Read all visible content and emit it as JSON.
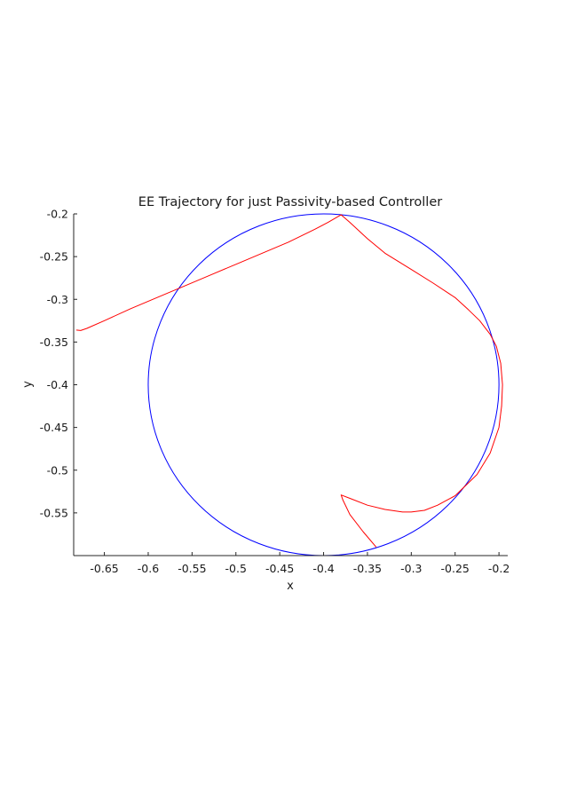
{
  "chart_data": {
    "type": "line",
    "title": "EE Trajectory for just Passivity-based Controller",
    "xlabel": "x",
    "ylabel": "y",
    "xlim": [
      -0.685,
      -0.19
    ],
    "ylim": [
      -0.6,
      -0.2
    ],
    "xticks": [
      -0.65,
      -0.6,
      -0.55,
      -0.5,
      -0.45,
      -0.4,
      -0.35,
      -0.3,
      -0.25,
      -0.2
    ],
    "xtick_labels": [
      "-0.65",
      "-0.6",
      "-0.55",
      "-0.5",
      "-0.45",
      "-0.4",
      "-0.35",
      "-0.3",
      "-0.25",
      "-0.2"
    ],
    "yticks": [
      -0.2,
      -0.25,
      -0.3,
      -0.35,
      -0.4,
      -0.45,
      -0.5,
      -0.55
    ],
    "ytick_labels": [
      "-0.2",
      "-0.25",
      "-0.3",
      "-0.35",
      "-0.4",
      "-0.45",
      "-0.5",
      "-0.55"
    ],
    "grid": false,
    "box": "left-bottom axes only",
    "series": [
      {
        "color": "#0000ff",
        "shape": "circle",
        "center": [
          -0.4,
          -0.4
        ],
        "radius": 0.2
      },
      {
        "color": "#ff0000",
        "x": [
          -0.682,
          -0.677,
          -0.67,
          -0.65,
          -0.62,
          -0.59,
          -0.56,
          -0.53,
          -0.5,
          -0.47,
          -0.44,
          -0.41,
          -0.395,
          -0.385,
          -0.38,
          -0.37,
          -0.35,
          -0.33,
          -0.3,
          -0.275,
          -0.25,
          -0.235,
          -0.222,
          -0.21,
          -0.203,
          -0.198,
          -0.196,
          -0.197,
          -0.2,
          -0.21,
          -0.225,
          -0.25,
          -0.27,
          -0.285,
          -0.3,
          -0.31,
          -0.33,
          -0.35,
          -0.37,
          -0.38,
          -0.378,
          -0.37,
          -0.355,
          -0.34
        ],
        "y": [
          -0.336,
          -0.3365,
          -0.334,
          -0.325,
          -0.311,
          -0.298,
          -0.285,
          -0.272,
          -0.259,
          -0.246,
          -0.233,
          -0.218,
          -0.21,
          -0.204,
          -0.201,
          -0.21,
          -0.229,
          -0.246,
          -0.265,
          -0.281,
          -0.298,
          -0.312,
          -0.325,
          -0.341,
          -0.355,
          -0.375,
          -0.4,
          -0.425,
          -0.45,
          -0.48,
          -0.505,
          -0.53,
          -0.541,
          -0.547,
          -0.549,
          -0.549,
          -0.546,
          -0.541,
          -0.533,
          -0.529,
          -0.535,
          -0.552,
          -0.572,
          -0.59
        ]
      }
    ]
  }
}
